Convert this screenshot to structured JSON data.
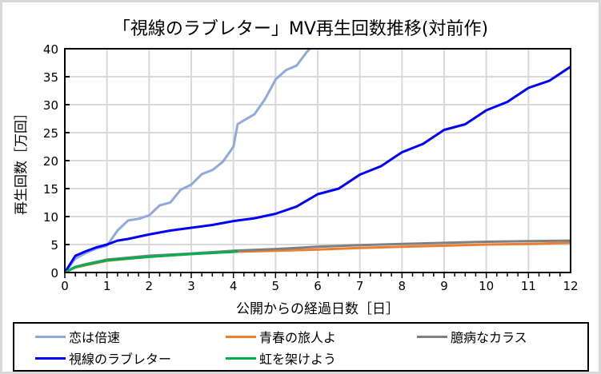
{
  "chart_data": {
    "type": "line",
    "title": "「視線のラブレター」MV再生回数推移(対前作)",
    "xlabel": "公開からの経過日数［日］",
    "ylabel": "再生回数［万回］",
    "xlim": [
      0,
      12
    ],
    "ylim": [
      0,
      40
    ],
    "xticks": [
      "0",
      "1",
      "2",
      "3",
      "4",
      "5",
      "6",
      "7",
      "8",
      "9",
      "10",
      "11",
      "12"
    ],
    "yticks": [
      "0",
      "5",
      "10",
      "15",
      "20",
      "25",
      "30",
      "35",
      "40"
    ],
    "grid": true,
    "legend_position": "bottom",
    "series": [
      {
        "name": "恋は倍速",
        "color": "#8faadc",
        "x": [
          0,
          0.25,
          0.5,
          0.75,
          1,
          1.25,
          1.5,
          1.75,
          2,
          2.25,
          2.5,
          2.75,
          3,
          3.25,
          3.5,
          3.75,
          4,
          4.1,
          4.25,
          4.5,
          4.75,
          5,
          5.25,
          5.5,
          5.75,
          5.9
        ],
        "y": [
          0,
          2.5,
          3.5,
          4.3,
          4.8,
          7.5,
          9.3,
          9.6,
          10.2,
          12,
          12.5,
          14.8,
          15.7,
          17.6,
          18.3,
          19.8,
          22.5,
          26.5,
          27.2,
          28.3,
          31,
          34.5,
          36.2,
          37,
          39.5,
          40.5
        ]
      },
      {
        "name": "青春の旅人よ",
        "color": "#ed7d31",
        "x": [
          0,
          0.25,
          0.5,
          1,
          2,
          3,
          4,
          5,
          6,
          7,
          8,
          9,
          10,
          11,
          12
        ],
        "y": [
          0,
          0.9,
          1.3,
          2.1,
          2.8,
          3.3,
          3.7,
          3.9,
          4.1,
          4.4,
          4.6,
          4.8,
          5.0,
          5.1,
          5.3
        ]
      },
      {
        "name": "臆病なカラス",
        "color": "#808080",
        "x": [
          0,
          0.25,
          0.5,
          1,
          2,
          3,
          4,
          5,
          6,
          7,
          8,
          9,
          10,
          11,
          12
        ],
        "y": [
          0,
          1.0,
          1.5,
          2.3,
          3.0,
          3.4,
          3.9,
          4.2,
          4.6,
          4.9,
          5.1,
          5.3,
          5.5,
          5.6,
          5.7
        ]
      },
      {
        "name": "視線のラブレター",
        "color": "#0000ff",
        "x": [
          0,
          0.25,
          0.5,
          0.75,
          1,
          1.25,
          1.5,
          2,
          2.5,
          3,
          3.5,
          4,
          4.5,
          5,
          5.5,
          6,
          6.5,
          7,
          7.5,
          8,
          8.5,
          9,
          9.5,
          10,
          10.5,
          11,
          11.5,
          12
        ],
        "y": [
          0,
          3,
          3.8,
          4.5,
          5,
          5.7,
          6,
          6.8,
          7.5,
          8,
          8.5,
          9.2,
          9.7,
          10.5,
          11.8,
          14,
          15,
          17.5,
          19,
          21.5,
          23,
          25.5,
          26.5,
          29,
          30.5,
          33,
          34.3,
          36.8
        ]
      },
      {
        "name": "虹を架けよう",
        "color": "#00b050",
        "x": [
          0,
          0.25,
          0.5,
          1,
          2,
          3,
          4,
          4.1
        ],
        "y": [
          0,
          1.0,
          1.4,
          2.2,
          2.8,
          3.3,
          3.7,
          3.8
        ]
      }
    ]
  }
}
